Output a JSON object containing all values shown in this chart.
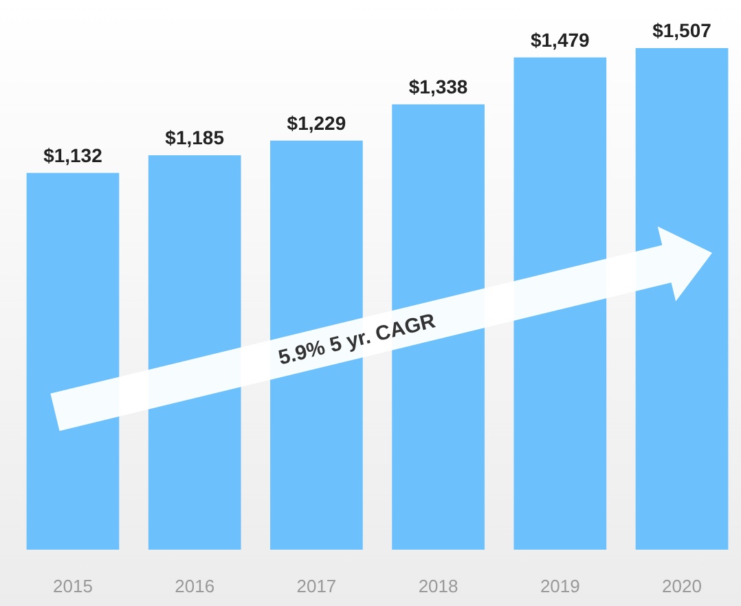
{
  "chart_data": {
    "type": "bar",
    "categories": [
      "2015",
      "2016",
      "2017",
      "2018",
      "2019",
      "2020"
    ],
    "values": [
      1132,
      1185,
      1229,
      1338,
      1479,
      1507
    ],
    "value_labels": [
      "$1,132",
      "$1,185",
      "$1,229",
      "$1,338",
      "$1,479",
      "$1,507"
    ],
    "color": "#6cc0fc",
    "annotations": [
      "5.9% 5 yr. CAGR"
    ]
  }
}
